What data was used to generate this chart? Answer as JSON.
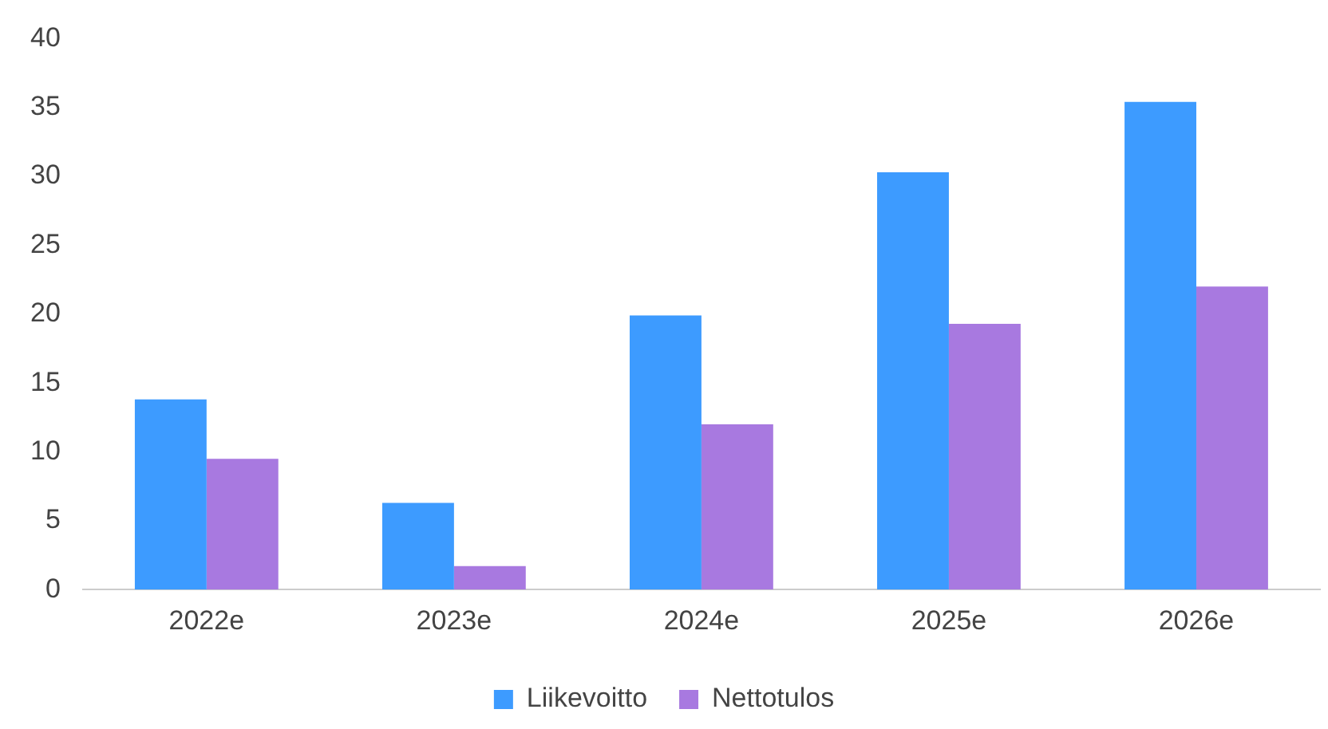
{
  "chart_data": {
    "type": "bar",
    "categories": [
      "2022e",
      "2023e",
      "2024e",
      "2025e",
      "2026e"
    ],
    "series": [
      {
        "name": "Liikevoitto",
        "color": "#3d9bff",
        "values": [
          13.8,
          6.3,
          19.9,
          30.3,
          35.4
        ]
      },
      {
        "name": "Nettotulos",
        "color": "#a879e0",
        "values": [
          9.5,
          1.7,
          12.0,
          19.3,
          22.0
        ]
      }
    ],
    "ylim": [
      0,
      40
    ],
    "yticks": [
      0,
      5,
      10,
      15,
      20,
      25,
      30,
      35,
      40
    ],
    "grid": false,
    "legend": "bottom"
  }
}
